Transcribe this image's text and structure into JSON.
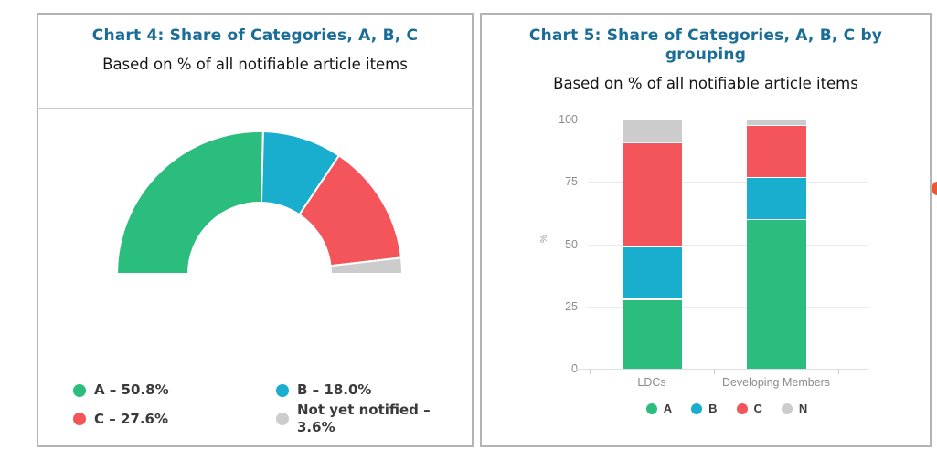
{
  "colors": {
    "A": "#2bbd7e",
    "B": "#19adce",
    "C": "#f4555a",
    "N": "#cccccc",
    "title_text": "#1a6d96",
    "card_border": "#b4b4b4"
  },
  "chart_data": [
    {
      "type": "pie",
      "subtype": "half-donut-gauge",
      "title": "Chart 4: Share of Categories, A, B, C",
      "subtitle": "Based on % of all notifiable article items",
      "labels": [
        "A",
        "B",
        "C",
        "Not yet notified"
      ],
      "values": [
        50.8,
        18.0,
        27.6,
        3.6
      ],
      "colors": [
        "#2bbd7e",
        "#19adce",
        "#f4555a",
        "#cccccc"
      ],
      "legend_labels": [
        "A – 50.8%",
        "B – 18.0%",
        "C – 27.6%",
        "Not yet notified – 3.6%"
      ],
      "legend_position": "bottom"
    },
    {
      "type": "bar",
      "subtype": "stacked",
      "title": "Chart 5: Share of Categories, A, B, C by grouping",
      "subtitle": "Based on % of all notifiable article items",
      "categories": [
        "LDCs",
        "Developing Members"
      ],
      "series": [
        {
          "name": "A",
          "color": "#2bbd7e",
          "values": [
            28,
            60
          ]
        },
        {
          "name": "B",
          "color": "#19adce",
          "values": [
            21,
            17
          ]
        },
        {
          "name": "C",
          "color": "#f4555a",
          "values": [
            42,
            21
          ]
        },
        {
          "name": "N",
          "color": "#cccccc",
          "values": [
            9,
            2
          ]
        }
      ],
      "ylabel": "%",
      "ylim": [
        0,
        100
      ],
      "yticks": [
        0,
        25,
        50,
        75,
        100
      ],
      "grid": true,
      "legend": [
        "A",
        "B",
        "C",
        "N"
      ],
      "legend_position": "bottom"
    }
  ]
}
